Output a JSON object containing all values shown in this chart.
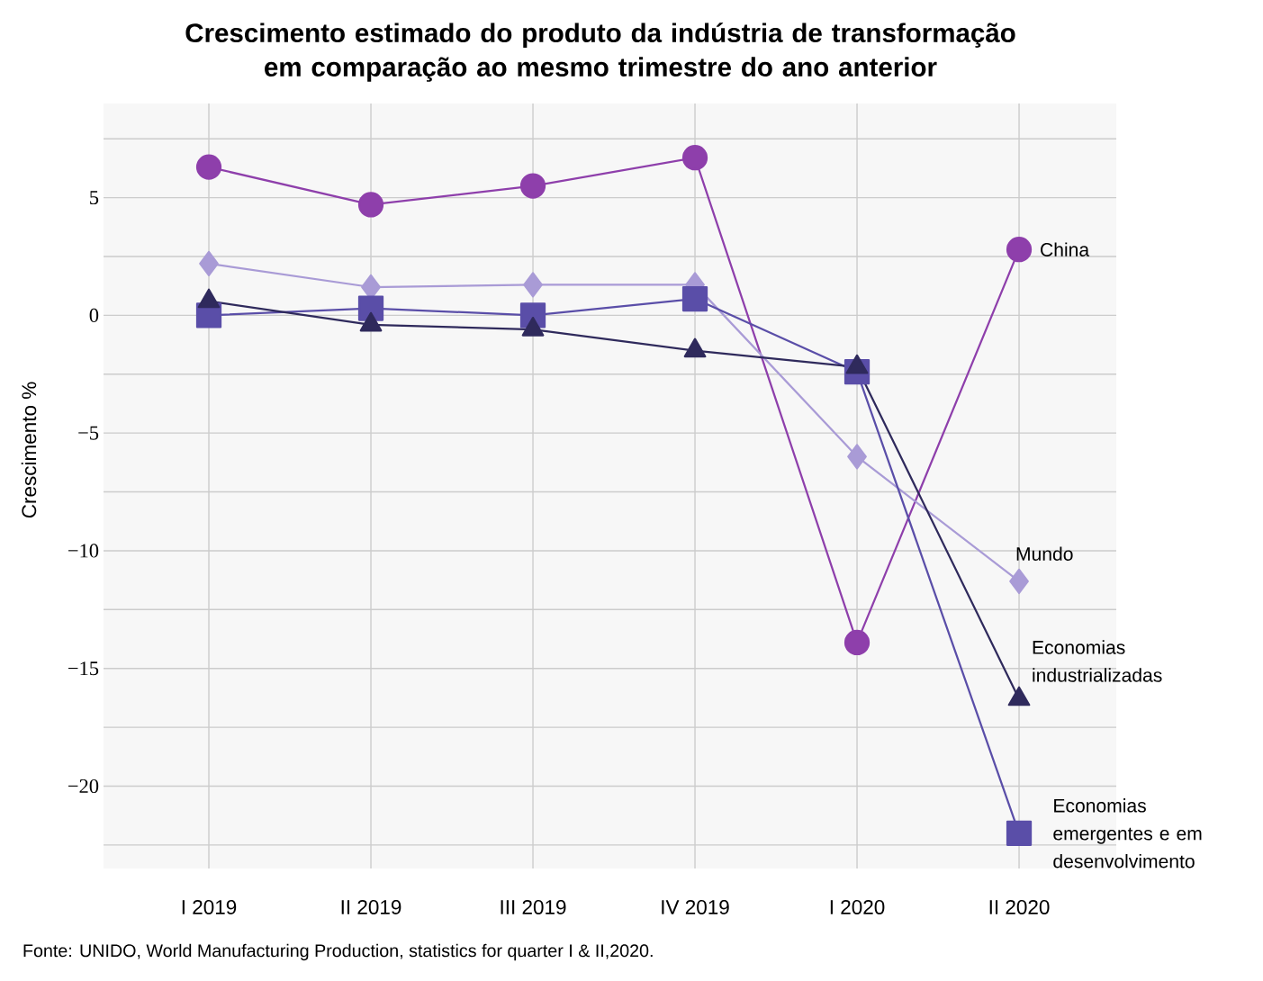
{
  "chart_data": {
    "type": "line",
    "title": "Crescimento estimado do produto da indústria de transformação em comparação ao mesmo trimestre do ano anterior",
    "ylabel": "Crescimento %",
    "categories": [
      "I 2019",
      "II 2019",
      "III 2019",
      "IV 2019",
      "I 2020",
      "II 2020"
    ],
    "series": [
      {
        "name": "China",
        "color": "#8e3fab",
        "marker": "circle",
        "values": [
          6.3,
          4.7,
          5.5,
          6.7,
          -13.9,
          2.8
        ]
      },
      {
        "name": "Mundo",
        "color": "#a99bd6",
        "marker": "diamond",
        "values": [
          2.2,
          1.2,
          1.3,
          1.3,
          -6.0,
          -11.3
        ]
      },
      {
        "name": "Economias emergentes e em desenvolvimento",
        "color": "#5a4ea8",
        "marker": "square",
        "values": [
          0.0,
          0.3,
          0.0,
          0.7,
          -2.4,
          -22.0
        ]
      },
      {
        "name": "Economias industrializadas",
        "color": "#2f2a5c",
        "marker": "triangle",
        "values": [
          0.6,
          -0.4,
          -0.6,
          -1.5,
          -2.2,
          -16.3
        ]
      }
    ],
    "ylim": [
      -23.5,
      9
    ],
    "yticks": [
      {
        "value": -22.5,
        "label": null
      },
      {
        "value": -20,
        "label": "−20"
      },
      {
        "value": -17.5,
        "label": null
      },
      {
        "value": -15,
        "label": "−15"
      },
      {
        "value": -12.5,
        "label": null
      },
      {
        "value": -10,
        "label": "−10"
      },
      {
        "value": -7.5,
        "label": null
      },
      {
        "value": -5,
        "label": "−5"
      },
      {
        "value": -2.5,
        "label": null
      },
      0,
      {
        "value": 2.5,
        "label": null
      },
      5,
      {
        "value": 7.5,
        "label": null
      }
    ],
    "grid": true,
    "line_style": "solid",
    "annotations": [
      "Fonte: UNIDO, World Manufacturing Production, statistics for quarter I & II,2020."
    ]
  }
}
